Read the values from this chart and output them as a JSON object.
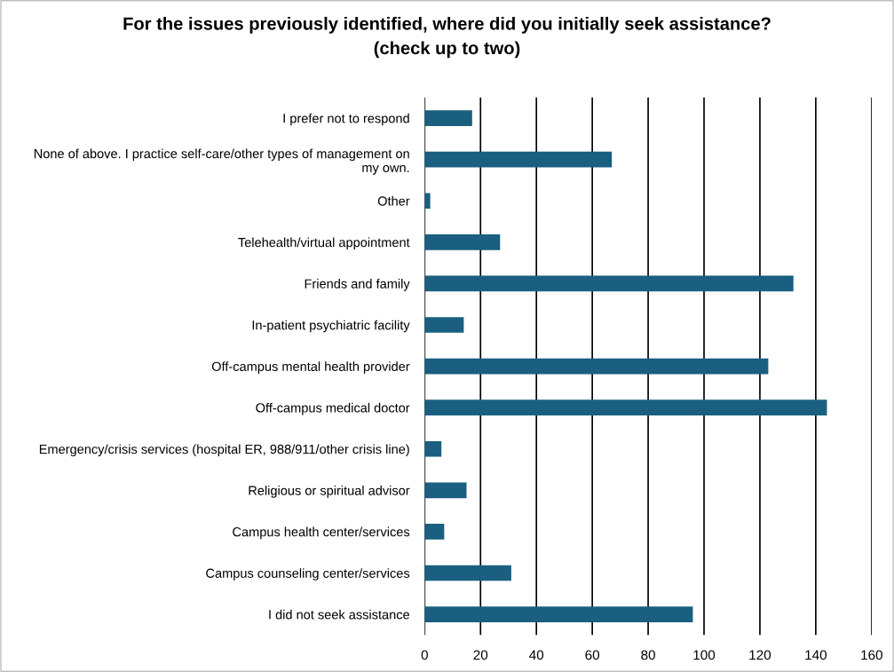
{
  "chart_data": {
    "type": "bar",
    "orientation": "horizontal",
    "title": "For the issues previously identified, where did you initially seek assistance?\n(check up to two)",
    "categories": [
      "I prefer not to respond",
      "None of above. I practice self-care/other types of management on my own.",
      "Other",
      "Telehealth/virtual appointment",
      "Friends and family",
      "In-patient psychiatric facility",
      "Off-campus mental health provider",
      "Off-campus medical doctor",
      "Emergency/crisis services (hospital ER, 988/911/other crisis line)",
      "Religious or spiritual advisor",
      "Campus health center/services",
      "Campus counseling center/services",
      "I did not seek assistance"
    ],
    "values": [
      17,
      67,
      2,
      27,
      132,
      14,
      123,
      144,
      6,
      15,
      7,
      31,
      96
    ],
    "color": "#1a5f80",
    "xlim": [
      0,
      160
    ],
    "xticks": [
      0,
      20,
      40,
      60,
      80,
      100,
      120,
      140,
      160
    ],
    "grid": "x",
    "legend": false
  }
}
